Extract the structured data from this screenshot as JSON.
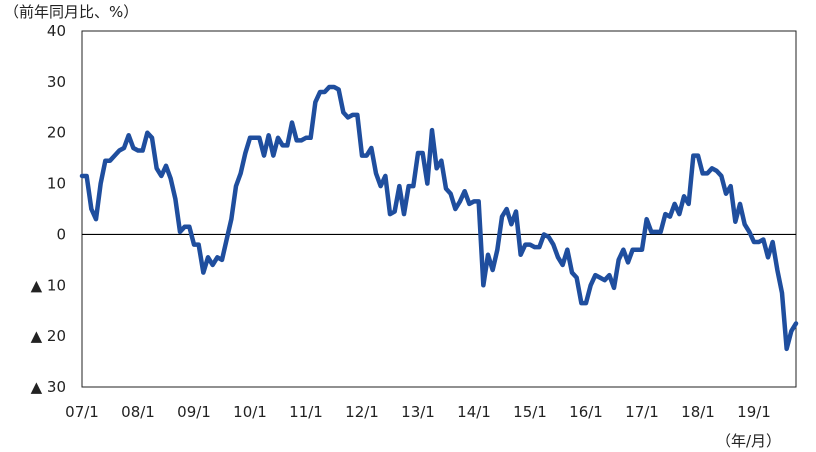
{
  "chart_data": {
    "type": "line",
    "title": "",
    "y_unit_label": "（前年同月比、%）",
    "x_unit_label": "（年/月）",
    "xlabel": "",
    "ylabel": "",
    "ylim": [
      -30,
      40
    ],
    "y_ticks": [
      {
        "value": 40,
        "label": "40"
      },
      {
        "value": 30,
        "label": "30"
      },
      {
        "value": 20,
        "label": "20"
      },
      {
        "value": 10,
        "label": "10"
      },
      {
        "value": 0,
        "label": "0"
      },
      {
        "value": -10,
        "label": "▲ 10"
      },
      {
        "value": -20,
        "label": "▲ 20"
      },
      {
        "value": -30,
        "label": "▲ 30"
      }
    ],
    "x_ticks": [
      {
        "value": 2007.0,
        "label": "07/1"
      },
      {
        "value": 2008.0,
        "label": "08/1"
      },
      {
        "value": 2009.0,
        "label": "09/1"
      },
      {
        "value": 2010.0,
        "label": "10/1"
      },
      {
        "value": 2011.0,
        "label": "11/1"
      },
      {
        "value": 2012.0,
        "label": "12/1"
      },
      {
        "value": 2013.0,
        "label": "13/1"
      },
      {
        "value": 2014.0,
        "label": "14/1"
      },
      {
        "value": 2015.0,
        "label": "15/1"
      },
      {
        "value": 2016.0,
        "label": "16/1"
      },
      {
        "value": 2017.0,
        "label": "17/1"
      },
      {
        "value": 2018.0,
        "label": "18/1"
      },
      {
        "value": 2019.0,
        "label": "19/1"
      }
    ],
    "xlim": [
      2007.0,
      2019.75
    ],
    "grid": false,
    "legend": "none",
    "line_color": "#1f4e9e",
    "series": [
      {
        "x": [
          2007.0,
          2007.083,
          2007.167,
          2007.25,
          2007.333,
          2007.417,
          2007.5,
          2007.583,
          2007.667,
          2007.75,
          2007.833,
          2007.917,
          2008.0,
          2008.083,
          2008.167,
          2008.25,
          2008.333,
          2008.417,
          2008.5,
          2008.583,
          2008.667,
          2008.75,
          2008.833,
          2008.917,
          2009.0,
          2009.083,
          2009.167,
          2009.25,
          2009.333,
          2009.417,
          2009.5,
          2009.583,
          2009.667,
          2009.75,
          2009.833,
          2009.917,
          2010.0,
          2010.083,
          2010.167,
          2010.25,
          2010.333,
          2010.417,
          2010.5,
          2010.583,
          2010.667,
          2010.75,
          2010.833,
          2010.917,
          2011.0,
          2011.083,
          2011.167,
          2011.25,
          2011.333,
          2011.417,
          2011.5,
          2011.583,
          2011.667,
          2011.75,
          2011.833,
          2011.917,
          2012.0,
          2012.083,
          2012.167,
          2012.25,
          2012.333,
          2012.417,
          2012.5,
          2012.583,
          2012.667,
          2012.75,
          2012.833,
          2012.917,
          2013.0,
          2013.083,
          2013.167,
          2013.25,
          2013.333,
          2013.417,
          2013.5,
          2013.583,
          2013.667,
          2013.75,
          2013.833,
          2013.917,
          2014.0,
          2014.083,
          2014.167,
          2014.25,
          2014.333,
          2014.417,
          2014.5,
          2014.583,
          2014.667,
          2014.75,
          2014.833,
          2014.917,
          2015.0,
          2015.083,
          2015.167,
          2015.25,
          2015.333,
          2015.417,
          2015.5,
          2015.583,
          2015.667,
          2015.75,
          2015.833,
          2015.917,
          2016.0,
          2016.083,
          2016.167,
          2016.25,
          2016.333,
          2016.417,
          2016.5,
          2016.583,
          2016.667,
          2016.75,
          2016.833,
          2016.917,
          2017.0,
          2017.083,
          2017.167,
          2017.25,
          2017.333,
          2017.417,
          2017.5,
          2017.583,
          2017.667,
          2017.75,
          2017.833,
          2017.917,
          2018.0,
          2018.083,
          2018.167,
          2018.25,
          2018.333,
          2018.417,
          2018.5,
          2018.583,
          2018.667,
          2018.75,
          2018.833,
          2018.917,
          2019.0,
          2019.083,
          2019.167,
          2019.25,
          2019.333,
          2019.417,
          2019.5,
          2019.583,
          2019.667,
          2019.75
        ],
        "values": [
          11.5,
          11.5,
          5.0,
          3.0,
          10.0,
          14.5,
          14.5,
          15.5,
          16.5,
          17.0,
          19.5,
          17.0,
          16.5,
          16.5,
          20.0,
          19.0,
          13.0,
          11.5,
          13.5,
          11.0,
          7.0,
          0.5,
          1.5,
          1.5,
          -2.0,
          -2.0,
          -7.5,
          -4.5,
          -6.0,
          -4.5,
          -5.0,
          -1.0,
          3.0,
          9.5,
          12.0,
          16.0,
          19.0,
          19.0,
          19.0,
          15.5,
          19.5,
          15.5,
          19.0,
          17.5,
          17.5,
          22.0,
          18.5,
          18.5,
          19.0,
          19.0,
          26.0,
          28.0,
          28.0,
          29.0,
          29.0,
          28.5,
          24.0,
          23.0,
          23.5,
          23.5,
          15.5,
          15.5,
          17.0,
          12.0,
          9.5,
          11.5,
          4.0,
          4.5,
          9.5,
          4.0,
          9.5,
          9.5,
          16.0,
          16.0,
          10.0,
          20.5,
          13.0,
          14.5,
          9.0,
          8.0,
          5.0,
          6.5,
          8.5,
          6.0,
          6.5,
          6.5,
          -10.0,
          -4.0,
          -7.0,
          -3.0,
          3.5,
          5.0,
          2.0,
          4.5,
          -4.0,
          -2.0,
          -2.0,
          -2.5,
          -2.5,
          0.0,
          -0.5,
          -2.0,
          -4.5,
          -6.0,
          -3.0,
          -7.5,
          -8.5,
          -13.5,
          -13.5,
          -10.0,
          -8.0,
          -8.5,
          -9.0,
          -8.0,
          -10.5,
          -5.0,
          -3.0,
          -5.5,
          -3.0,
          -3.0,
          -3.0,
          3.0,
          0.5,
          0.5,
          0.5,
          4.0,
          3.5,
          6.0,
          4.0,
          7.5,
          6.0,
          15.5,
          15.5,
          12.0,
          12.0,
          13.0,
          12.5,
          11.5,
          8.0,
          9.5,
          2.5,
          6.0,
          2.0,
          0.5,
          -1.5,
          -1.5,
          -1.0,
          -4.5,
          -1.5,
          -7.0,
          -11.5,
          -22.5,
          -19.0,
          -17.5
        ]
      }
    ]
  }
}
